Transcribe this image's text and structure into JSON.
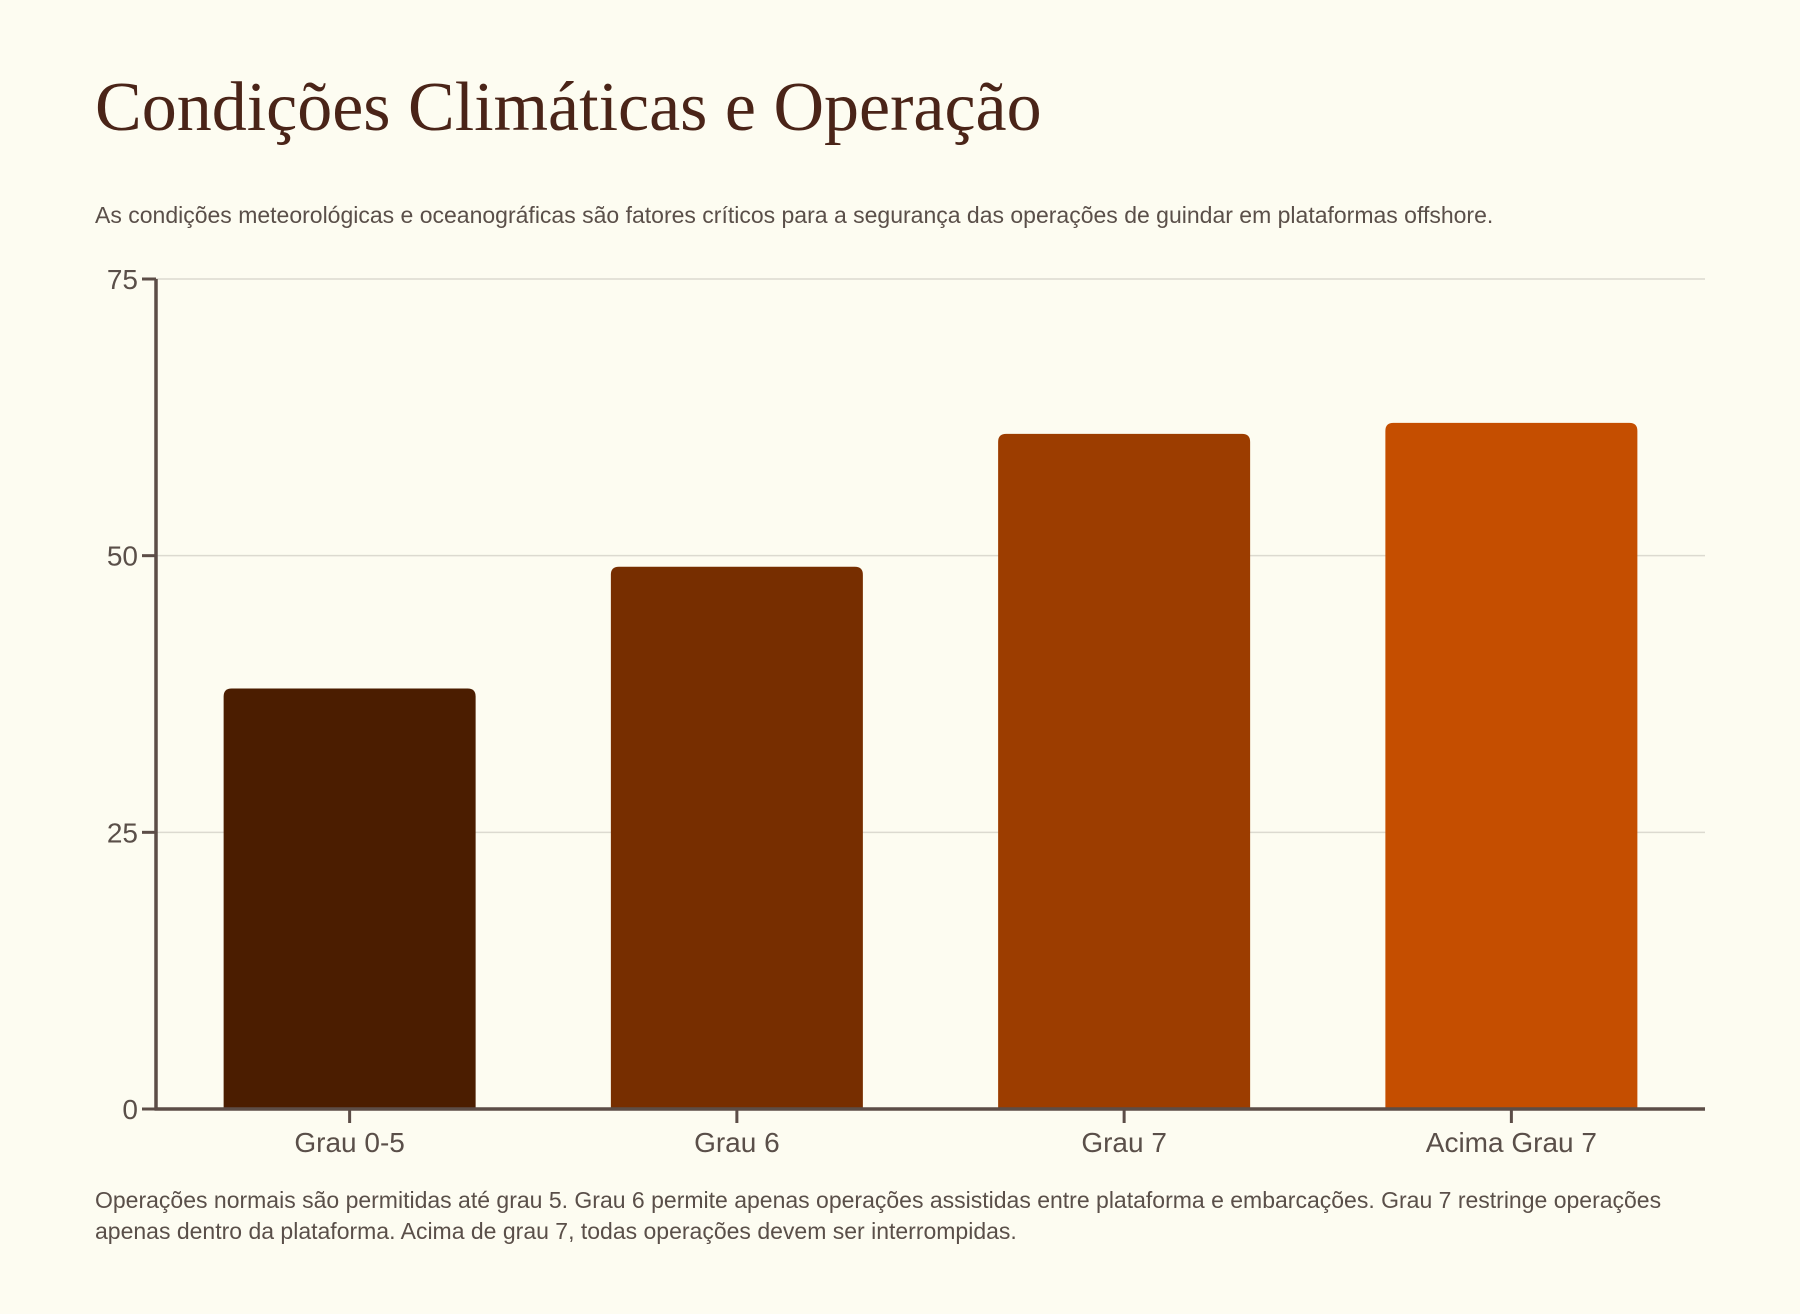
{
  "header": {
    "title": "Condições Climáticas e Operação",
    "subtitle": "As condições meteorológicas e oceanográficas são fatores críticos para a segurança das operações de guindar em plataformas offshore."
  },
  "note": {
    "text": "Operações normais são permitidas até grau 5. Grau 6 permite apenas operações assistidas entre plataforma e embarcações. Grau 7 restringe operações apenas dentro da plataforma. Acima de grau 7, todas operações devem ser interrompidas."
  },
  "chart_data": {
    "type": "bar",
    "categories": [
      "Grau 0-5",
      "Grau 6",
      "Grau 7",
      "Acima Grau 7"
    ],
    "values": [
      38,
      49,
      61,
      62
    ],
    "bar_colors": [
      "#4b1d00",
      "#772e00",
      "#9c3d00",
      "#c54e00"
    ],
    "yticks": [
      0,
      25,
      50,
      75
    ],
    "ylim": [
      0,
      75
    ],
    "grid": true,
    "title": "",
    "xlabel": "",
    "ylabel": ""
  },
  "colors": {
    "background": "#fdfcf1",
    "title": "#4a2418",
    "text": "#5a4f49",
    "axis": "#5c4d47",
    "grid": "#dcdad0"
  }
}
